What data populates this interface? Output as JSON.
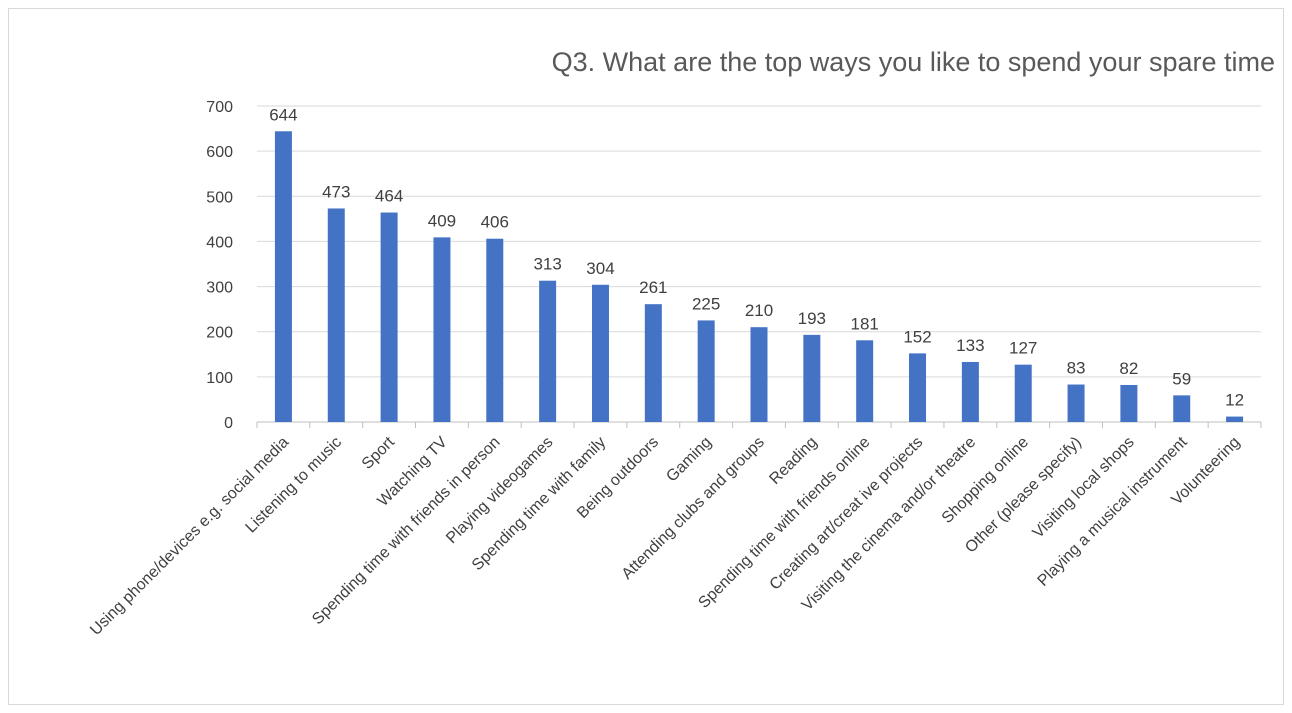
{
  "chart_data": {
    "type": "bar",
    "title": "Q3. What are the top ways you like to spend your spare time",
    "categories": [
      "Using phone/devices e.g. social media",
      "Listening to music",
      "Sport",
      "Watching TV",
      "Spending time with friends in person",
      "Playing videogames",
      "Spending time with family",
      "Being outdoors",
      "Gaming",
      "Attending clubs and groups",
      "Reading",
      "Spending time with friends online",
      "Creating art/creat ive projects",
      "Visiting the cinema and/or theatre",
      "Shopping online",
      "Other (please specify)",
      "Visiting local shops",
      "Playing a musical instrument",
      "Volunteering"
    ],
    "values": [
      644,
      473,
      464,
      409,
      406,
      313,
      304,
      261,
      225,
      210,
      193,
      181,
      152,
      133,
      127,
      83,
      82,
      59,
      12
    ],
    "ylim": [
      0,
      700
    ],
    "yticks": [
      0,
      100,
      200,
      300,
      400,
      500,
      600,
      700
    ],
    "xlabel": "",
    "ylabel": "",
    "grid": true,
    "legend": "none",
    "colors": {
      "bar": "#4472c4",
      "grid": "#d9d9d9",
      "text": "#404040",
      "title": "#595959"
    }
  }
}
